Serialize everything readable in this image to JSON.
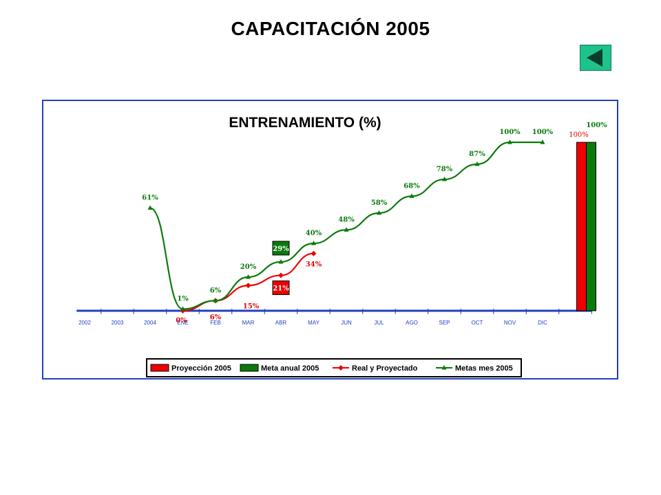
{
  "page": {
    "title": "CAPACITACIÓN  2005"
  },
  "nav": {
    "back_icon": "triangle-left-icon",
    "back_color": "#1ec28b"
  },
  "chart_data": {
    "type": "line",
    "title": "ENTRENAMIENTO (%)",
    "categories": [
      "2002",
      "2003",
      "2004",
      "ENE",
      "FEB",
      "MAR",
      "ABR",
      "MAY",
      "JUN",
      "JUL",
      "AGO",
      "SEP",
      "OCT",
      "NOV",
      "DIC"
    ],
    "ylim": [
      0,
      100
    ],
    "colors": {
      "red": "#ee0000",
      "green": "#0a7a0a",
      "axis": "#1f3fbf"
    },
    "series": [
      {
        "name": "Real y Proyectado",
        "type": "line",
        "marker": "diamond",
        "color": "#ee0000",
        "points": [
          {
            "cat": "ENE",
            "value": 0
          },
          {
            "cat": "FEB",
            "value": 6
          },
          {
            "cat": "MAR",
            "value": 15
          },
          {
            "cat": "ABR",
            "value": 21
          },
          {
            "cat": "MAY",
            "value": 34
          }
        ],
        "labels": [
          {
            "cat": "ENE",
            "text": "0%"
          },
          {
            "cat": "FEB",
            "text": "6%"
          },
          {
            "cat": "MAR",
            "text": "15%"
          },
          {
            "cat": "ABR",
            "text": "21%",
            "boxed": true
          },
          {
            "cat": "MAY",
            "text": "34%"
          }
        ]
      },
      {
        "name": "Metas mes 2005",
        "type": "line",
        "marker": "triangle",
        "color": "#0a7a0a",
        "points": [
          {
            "cat": "2004",
            "value": 61
          },
          {
            "cat": "ENE",
            "value": 1
          },
          {
            "cat": "FEB",
            "value": 6
          },
          {
            "cat": "MAR",
            "value": 20
          },
          {
            "cat": "ABR",
            "value": 29
          },
          {
            "cat": "MAY",
            "value": 40
          },
          {
            "cat": "JUN",
            "value": 48
          },
          {
            "cat": "JUL",
            "value": 58
          },
          {
            "cat": "AGO",
            "value": 68
          },
          {
            "cat": "SEP",
            "value": 78
          },
          {
            "cat": "OCT",
            "value": 87
          },
          {
            "cat": "NOV",
            "value": 100
          },
          {
            "cat": "DIC",
            "value": 100
          }
        ],
        "labels": [
          {
            "cat": "2004",
            "text": "61%"
          },
          {
            "cat": "ENE",
            "text": "1%"
          },
          {
            "cat": "FEB",
            "text": "6%"
          },
          {
            "cat": "MAR",
            "text": "20%"
          },
          {
            "cat": "ABR",
            "text": "29%",
            "boxed": true
          },
          {
            "cat": "MAY",
            "text": "40%"
          },
          {
            "cat": "JUN",
            "text": "48%"
          },
          {
            "cat": "JUL",
            "text": "58%"
          },
          {
            "cat": "AGO",
            "text": "68%"
          },
          {
            "cat": "SEP",
            "text": "78%"
          },
          {
            "cat": "OCT",
            "text": "87%"
          },
          {
            "cat": "NOV",
            "text": "100%"
          },
          {
            "cat": "DIC",
            "text": "100%"
          }
        ]
      },
      {
        "name": "Proyección 2005",
        "type": "bar",
        "color": "#ee0000",
        "value": 100,
        "label": "100%"
      },
      {
        "name": "Meta anual 2005",
        "type": "bar",
        "color": "#0a7a0a",
        "value": 100,
        "label": "100%"
      }
    ],
    "legend": {
      "position": "bottom",
      "entries": [
        "Proyección 2005",
        "Meta anual 2005",
        "Real y Proyectado",
        "Metas mes 2005"
      ]
    }
  }
}
